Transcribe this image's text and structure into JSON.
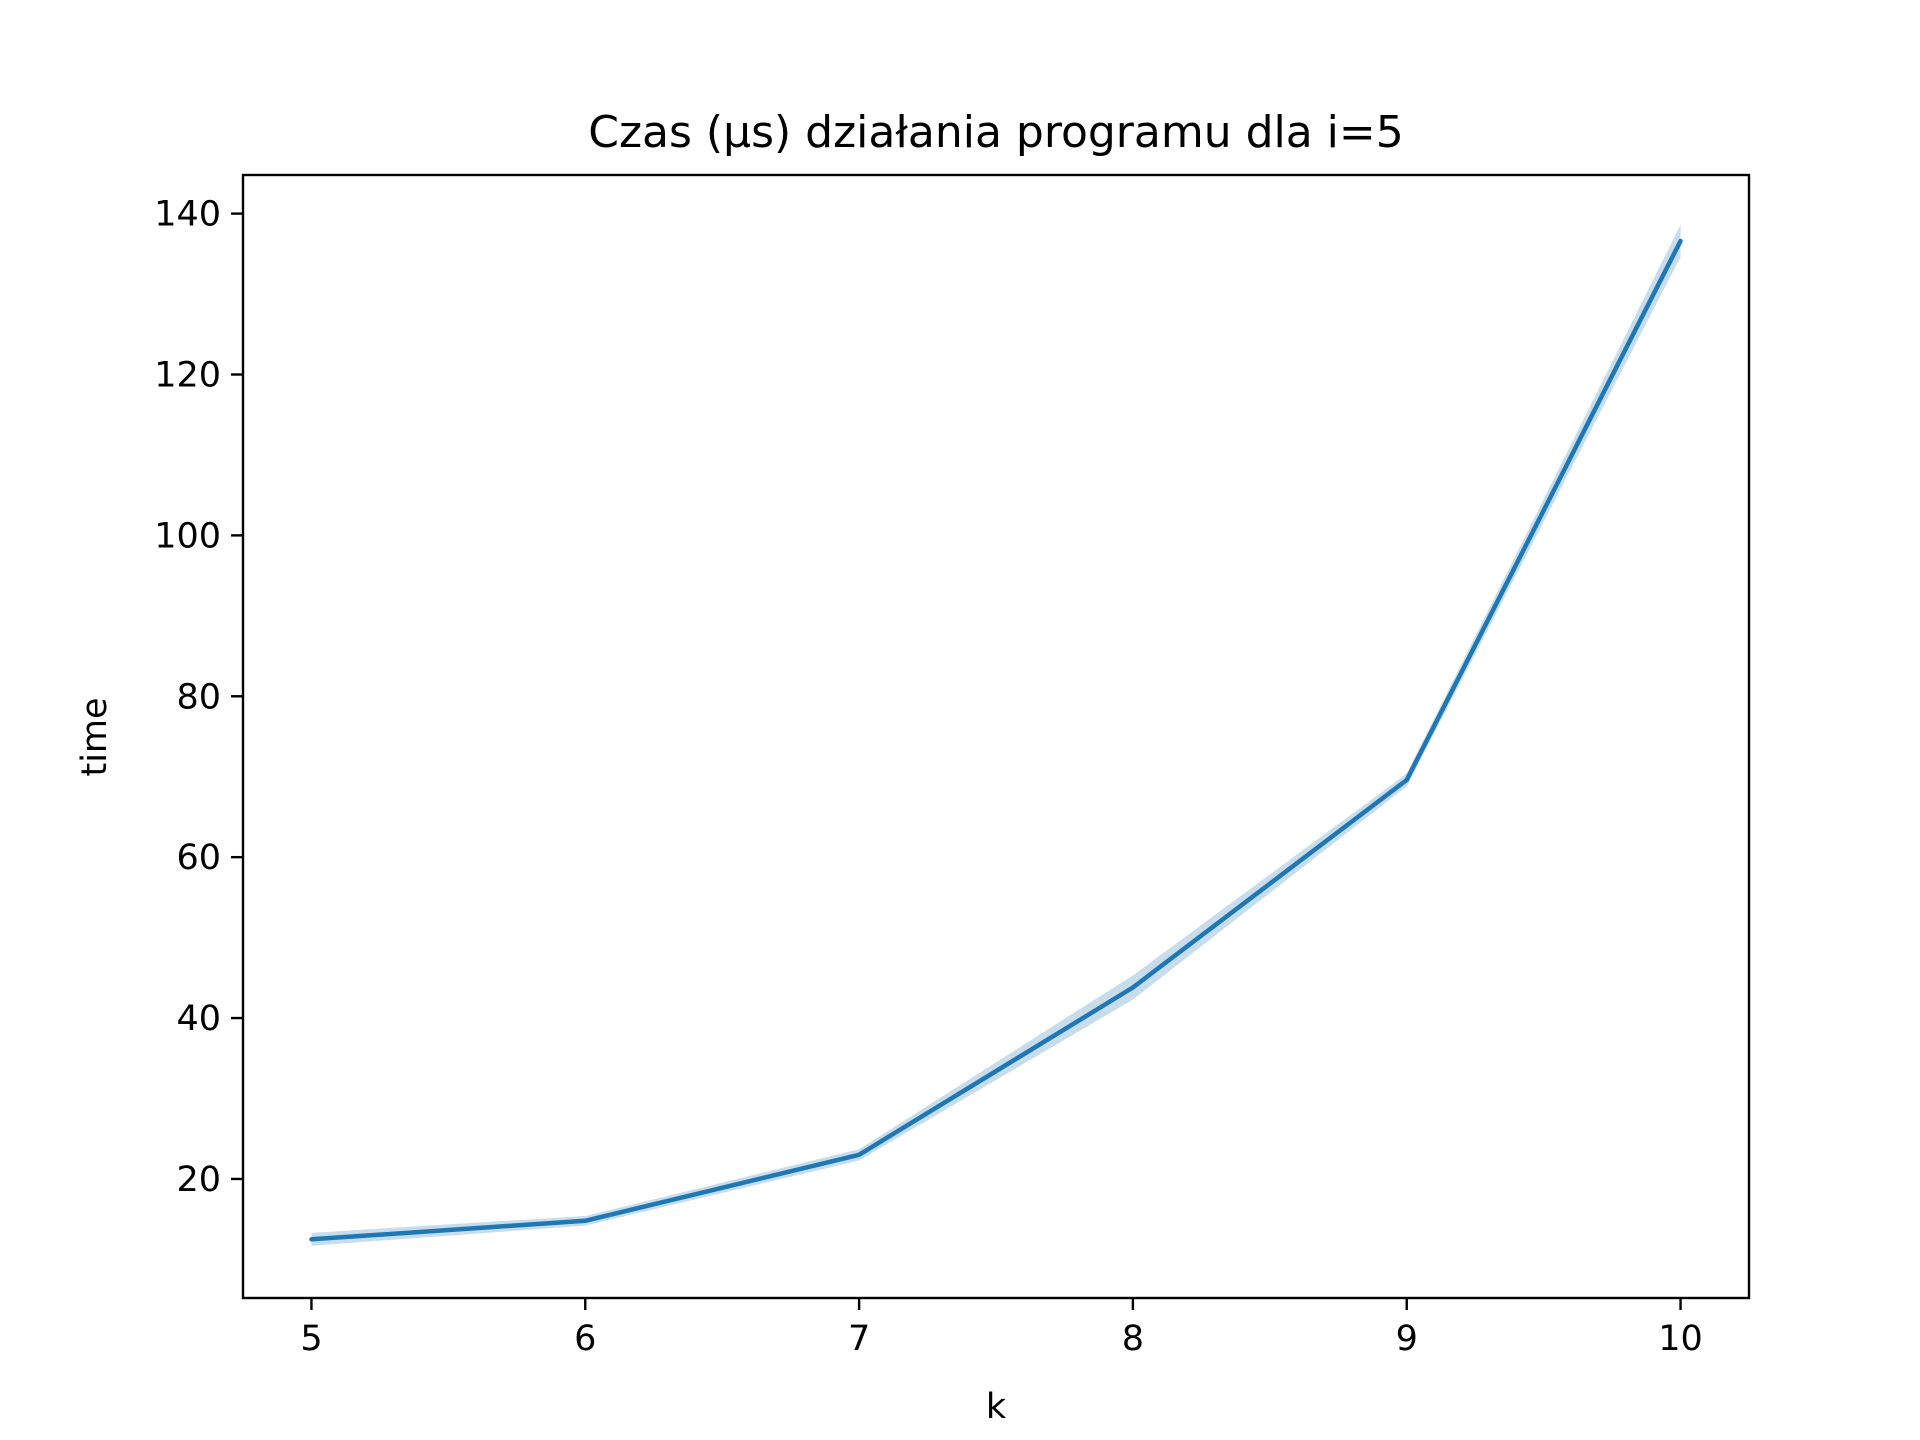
{
  "chart_data": {
    "type": "line",
    "title": "Czas (µs) działania programu dla i=5",
    "xlabel": "k",
    "ylabel": "time",
    "x": [
      5,
      6,
      7,
      8,
      9,
      10
    ],
    "xticks": [
      5,
      6,
      7,
      8,
      9,
      10
    ],
    "yticks": [
      20,
      40,
      60,
      80,
      100,
      120,
      140
    ],
    "xlim": [
      4.75,
      10.25
    ],
    "ylim": [
      5.2,
      144.8
    ],
    "grid": false,
    "series": [
      {
        "values": [
          12.5,
          14.8,
          23.0,
          43.8,
          69.6,
          136.6
        ],
        "ci_lower": [
          11.7,
          14.2,
          22.3,
          42.3,
          68.8,
          134.6
        ],
        "ci_upper": [
          13.3,
          15.4,
          23.7,
          45.3,
          70.4,
          138.6
        ],
        "color": "#1f77b4"
      }
    ]
  }
}
